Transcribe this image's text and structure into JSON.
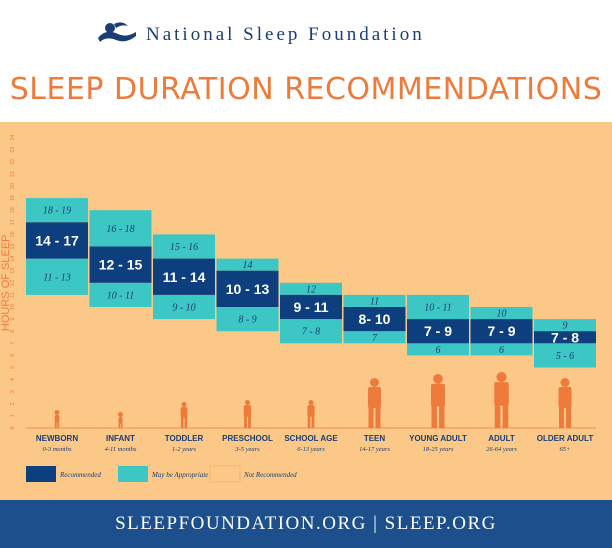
{
  "header": {
    "organization": "National Sleep Foundation"
  },
  "title": "SLEEP DURATION RECOMMENDATIONS",
  "footer": {
    "text": "SLEEPFOUNDATION.ORG | SLEEP.ORG"
  },
  "colors": {
    "recommended": "#0d3f7e",
    "may_be_appropriate": "#3cc7c4",
    "not_recommended": "#fcc888",
    "title": "#ee7a3c",
    "footer": "#1c4f8c",
    "silhouette": "#ee7a3c"
  },
  "chart_data": {
    "type": "bar",
    "title": "SLEEP DURATION RECOMMENDATIONS",
    "ylabel": "HOURS OF SLEEP",
    "ylim": [
      0,
      24
    ],
    "y_ticks": [
      0,
      1,
      2,
      3,
      4,
      5,
      6,
      7,
      8,
      9,
      10,
      11,
      12,
      13,
      14,
      15,
      16,
      17,
      18,
      19,
      20,
      21,
      22,
      23,
      24
    ],
    "grid": false,
    "legend": {
      "placement": "bottom-left",
      "entries": [
        "Recommended",
        "May be Appropriate",
        "Not Recommended"
      ]
    },
    "categories": [
      {
        "name": "NEWBORN",
        "ages": "0-3 months",
        "recommended": [
          14,
          17
        ],
        "recommended_label": "14 - 17",
        "upper": [
          17,
          19
        ],
        "upper_label": "18 - 19",
        "lower": [
          11,
          14
        ],
        "lower_label": "11 - 13"
      },
      {
        "name": "INFANT",
        "ages": "4-11 months",
        "recommended": [
          12,
          15
        ],
        "recommended_label": "12 - 15",
        "upper": [
          15,
          18
        ],
        "upper_label": "16 - 18",
        "lower": [
          10,
          12
        ],
        "lower_label": "10 - 11"
      },
      {
        "name": "TODDLER",
        "ages": "1-2 years",
        "recommended": [
          11,
          14
        ],
        "recommended_label": "11 - 14",
        "upper": [
          14,
          16
        ],
        "upper_label": "15 - 16",
        "lower": [
          9,
          11
        ],
        "lower_label": "9 - 10"
      },
      {
        "name": "PRESCHOOL",
        "ages": "3-5 years",
        "recommended": [
          10,
          13
        ],
        "recommended_label": "10 - 13",
        "upper": [
          13,
          14
        ],
        "upper_label": "14",
        "lower": [
          8,
          10
        ],
        "lower_label": "8 - 9"
      },
      {
        "name": "SCHOOL AGE",
        "ages": "6-13 years",
        "recommended": [
          9,
          11
        ],
        "recommended_label": "9 - 11",
        "upper": [
          11,
          12
        ],
        "upper_label": "12",
        "lower": [
          7,
          9
        ],
        "lower_label": "7 - 8"
      },
      {
        "name": "TEEN",
        "ages": "14-17 years",
        "recommended": [
          8,
          10
        ],
        "recommended_label": "8- 10",
        "upper": [
          10,
          11
        ],
        "upper_label": "11",
        "lower": [
          7,
          8
        ],
        "lower_label": "7"
      },
      {
        "name": "YOUNG ADULT",
        "ages": "18-25 years",
        "recommended": [
          7,
          9
        ],
        "recommended_label": "7 - 9",
        "upper": [
          9,
          11
        ],
        "upper_label": "10 - 11",
        "lower": [
          6,
          7
        ],
        "lower_label": "6"
      },
      {
        "name": "ADULT",
        "ages": "26-64 years",
        "recommended": [
          7,
          9
        ],
        "recommended_label": "7 - 9",
        "upper": [
          9,
          10
        ],
        "upper_label": "10",
        "lower": [
          6,
          7
        ],
        "lower_label": "6"
      },
      {
        "name": "OLDER ADULT",
        "ages": "65+",
        "recommended": [
          7,
          8
        ],
        "recommended_label": "7 - 8",
        "upper": [
          8,
          9
        ],
        "upper_label": "9",
        "lower": [
          5,
          7
        ],
        "lower_label": "5 - 6"
      }
    ]
  }
}
